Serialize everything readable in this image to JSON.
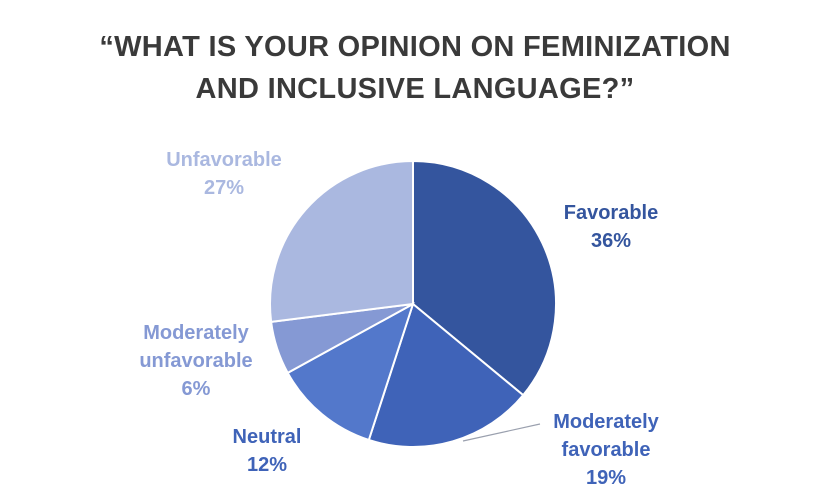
{
  "chart_data": {
    "type": "pie",
    "title": "“WHAT IS YOUR OPINION ON FEMINIZATION AND INCLUSIVE LANGUAGE?”",
    "title_lines": [
      "“WHAT IS YOUR OPINION ON FEMINIZATION",
      "AND INCLUSIVE LANGUAGE?”"
    ],
    "slices": [
      {
        "label": "Favorable",
        "value": 36,
        "value_text": "36%",
        "color": "#34559e"
      },
      {
        "label": "Moderately favorable",
        "value": 19,
        "value_text": "19%",
        "color": "#3f63b8"
      },
      {
        "label": "Neutral",
        "value": 12,
        "value_text": "12%",
        "color": "#5378cb"
      },
      {
        "label": "Moderately unfavorable",
        "value": 6,
        "value_text": "6%",
        "color": "#8599d4"
      },
      {
        "label": "Unfavorable",
        "value": 27,
        "value_text": "27%",
        "color": "#aab8e0"
      }
    ],
    "start_angle": "12 o'clock",
    "direction": "clockwise",
    "legend": "none",
    "grid": false
  }
}
